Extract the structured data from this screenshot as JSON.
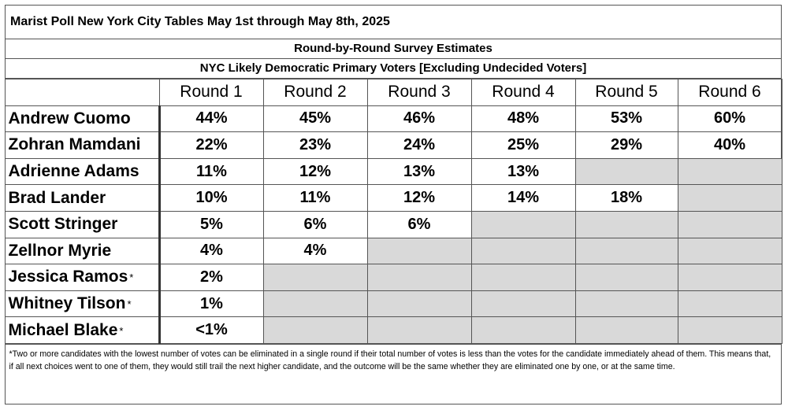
{
  "title": "Marist Poll New York City Tables May 1st through May 8th, 2025",
  "subtitle_1": "Round-by-Round Survey Estimates",
  "subtitle_2": "NYC Likely Democratic Primary Voters [Excluding Undecided Voters]",
  "footnote": "*Two or more candidates with the lowest number of votes can be eliminated in a single round if their total number of votes is less than the votes for the candidate immediately ahead of them. This means that, if all next choices went to one of them, they would still trail the next higher candidate, and the outcome will be the same whether they are eliminated one by one, or at the same time.",
  "chart_data": {
    "type": "table",
    "title": "Marist Poll New York City Tables May 1st through May 8th, 2025",
    "columns": [
      "Round 1",
      "Round 2",
      "Round 3",
      "Round 4",
      "Round 5",
      "Round 6"
    ],
    "rows": [
      {
        "name": "Andrew Cuomo",
        "star": "",
        "values": [
          "44%",
          "45%",
          "46%",
          "48%",
          "53%",
          "60%"
        ]
      },
      {
        "name": "Zohran Mamdani",
        "star": "",
        "values": [
          "22%",
          "23%",
          "24%",
          "25%",
          "29%",
          "40%"
        ]
      },
      {
        "name": "Adrienne Adams",
        "star": "",
        "values": [
          "11%",
          "12%",
          "13%",
          "13%",
          null,
          null
        ]
      },
      {
        "name": "Brad Lander",
        "star": "",
        "values": [
          "10%",
          "11%",
          "12%",
          "14%",
          "18%",
          null
        ]
      },
      {
        "name": "Scott Stringer",
        "star": "",
        "values": [
          "5%",
          "6%",
          "6%",
          null,
          null,
          null
        ]
      },
      {
        "name": "Zellnor Myrie",
        "star": "",
        "values": [
          "4%",
          "4%",
          null,
          null,
          null,
          null
        ]
      },
      {
        "name": "Jessica Ramos",
        "star": "*",
        "values": [
          "2%",
          null,
          null,
          null,
          null,
          null
        ]
      },
      {
        "name": "Whitney Tilson",
        "star": "*",
        "values": [
          "1%",
          null,
          null,
          null,
          null,
          null
        ]
      },
      {
        "name": "Michael Blake",
        "star": "*",
        "values": [
          "<1%",
          null,
          null,
          null,
          null,
          null
        ]
      }
    ],
    "eliminated_cell_color": "#d9d9d9"
  }
}
